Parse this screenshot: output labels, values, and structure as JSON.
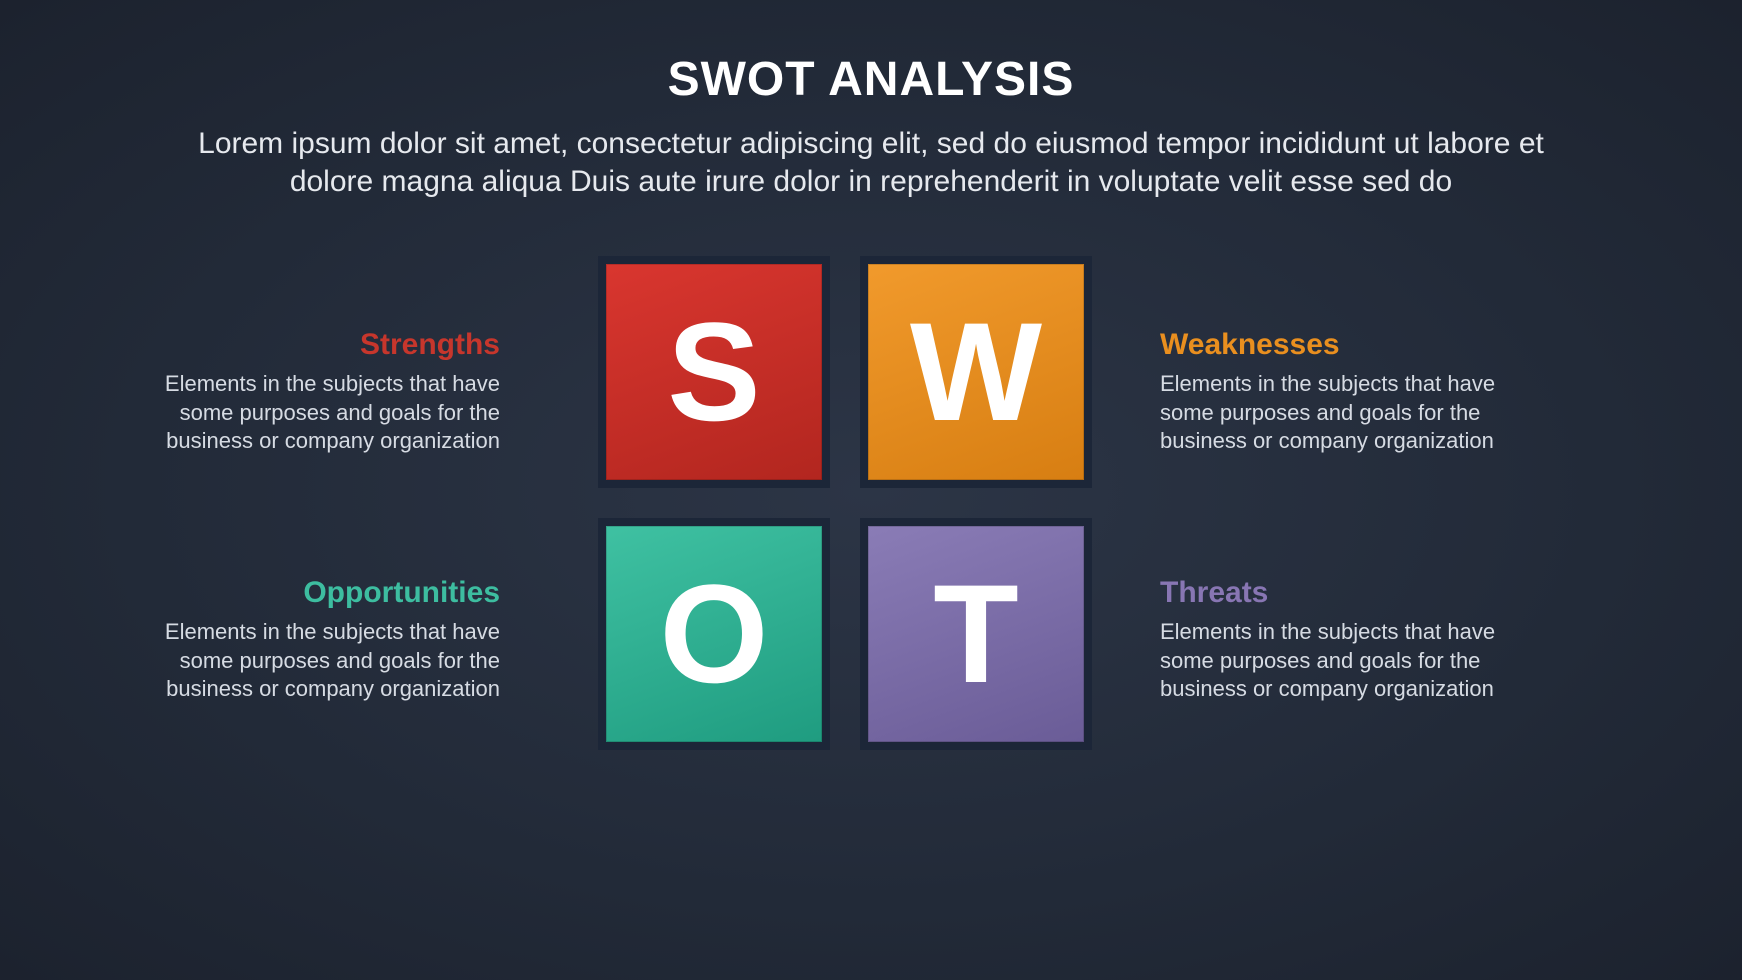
{
  "type": "infographic",
  "layout": "swot-2x2-grid-with-side-labels",
  "background_gradient": [
    "#2c3546",
    "#222a38",
    "#1c222e"
  ],
  "title": {
    "text": "SWOT ANALYSIS",
    "color": "#ffffff",
    "fontsize": 48,
    "font_weight": 800
  },
  "subtitle": {
    "text": "Lorem ipsum dolor sit amet, consectetur adipiscing elit, sed do eiusmod tempor incididunt ut labore et dolore magna aliqua Duis aute irure dolor in reprehenderit in voluptate velit esse sed do",
    "color": "#e6e9ee",
    "fontsize": 30
  },
  "grid": {
    "tile_size": 232,
    "tile_gap": 30,
    "border_color": "#1c2638",
    "border_width": 8,
    "letter_color": "#ffffff",
    "letter_fontsize": 140
  },
  "items": {
    "s": {
      "letter": "S",
      "tile_color_from": "#d9362f",
      "tile_color_to": "#b2261f",
      "heading": "Strengths",
      "heading_color": "#c7362c",
      "body": "Elements in the subjects that have some purposes and goals for the business or company organization",
      "body_color": "#d6dbe3",
      "tile_pos": "top-left",
      "text_side": "left"
    },
    "w": {
      "letter": "W",
      "tile_color_from": "#f19a2c",
      "tile_color_to": "#d77e12",
      "heading": "Weaknesses",
      "heading_color": "#e98f1f",
      "body": "Elements in the subjects that have some purposes and goals for the business or company organization",
      "body_color": "#d6dbe3",
      "tile_pos": "top-right",
      "text_side": "right"
    },
    "o": {
      "letter": "O",
      "tile_color_from": "#3fc1a2",
      "tile_color_to": "#1f9c80",
      "heading": "Opportunities",
      "heading_color": "#3dbda0",
      "body": "Elements in the subjects that have some purposes and goals for the business or company organization",
      "body_color": "#d6dbe3",
      "tile_pos": "bottom-left",
      "text_side": "left"
    },
    "t": {
      "letter": "T",
      "tile_color_from": "#8a7cb6",
      "tile_color_to": "#6a5c97",
      "heading": "Threats",
      "heading_color": "#8876b3",
      "body": "Elements in the subjects that have some purposes and goals for the business or company organization",
      "body_color": "#d6dbe3",
      "tile_pos": "bottom-right",
      "text_side": "right"
    }
  }
}
